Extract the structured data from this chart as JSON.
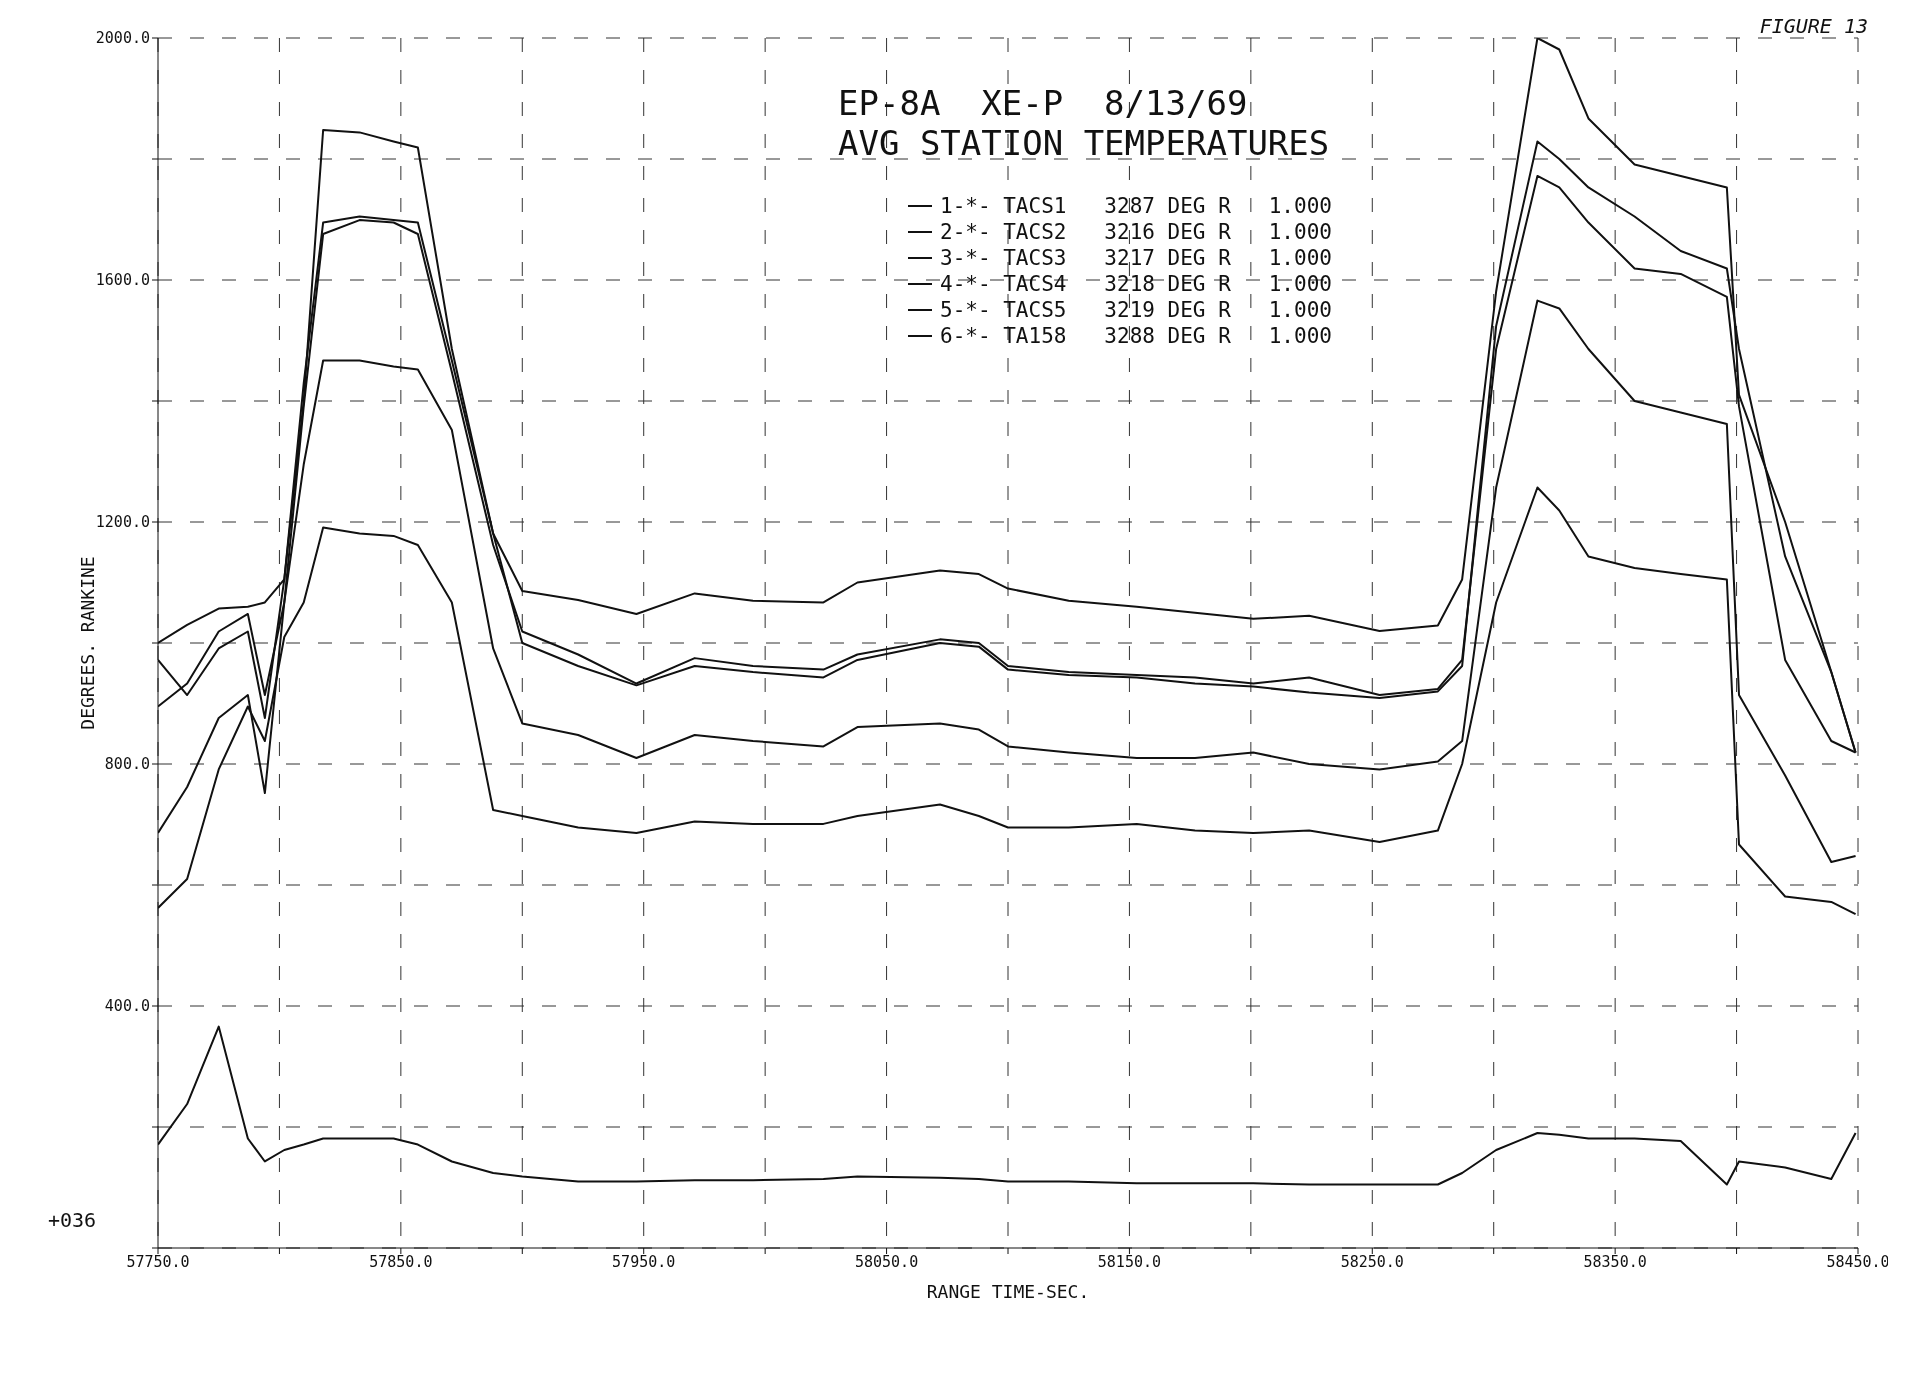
{
  "chart_data": {
    "type": "line",
    "title": "EP-8A  XE-P  8/13/69",
    "subtitle": "AVG STATION TEMPERATURES",
    "xlabel": "RANGE TIME-SEC.",
    "ylabel": "DEGREES. RANKINE",
    "annotations": [
      "+036",
      "FIGURE 13"
    ],
    "x": [
      57750,
      57762,
      57775,
      57787,
      57794,
      57802,
      57810,
      57818,
      57833,
      57847,
      57857,
      57871,
      57888,
      57900,
      57923,
      57947,
      57971,
      57995,
      58024,
      58038,
      58072,
      58088,
      58100,
      58125,
      58153,
      58177,
      58201,
      58224,
      58253,
      58277,
      58287,
      58301,
      58318,
      58327,
      58339,
      58358,
      58377,
      58396,
      58401,
      58420,
      58439,
      58449
    ],
    "series": [
      {
        "name": "1-*- TACS1   3287 DEG R   1.000",
        "color": "#111111",
        "values": [
          171,
          238,
          366,
          181,
          143,
          162,
          171,
          181,
          181,
          181,
          171,
          143,
          124,
          118,
          110,
          110,
          112,
          112,
          114,
          118,
          116,
          114,
          110,
          110,
          107,
          107,
          107,
          105,
          105,
          105,
          124,
          162,
          190,
          187,
          181,
          181,
          177,
          105,
          143,
          133,
          114,
          190
        ]
      },
      {
        "name": "2-*- TACS2   3216 DEG R   1.000",
        "color": "#111111",
        "values": [
          562,
          610,
          791,
          895,
          838,
          1010,
          1067,
          1191,
          1181,
          1177,
          1162,
          1067,
          724,
          714,
          695,
          686,
          705,
          701,
          701,
          714,
          733,
          714,
          695,
          695,
          701,
          690,
          686,
          690,
          671,
          690,
          800,
          1067,
          1257,
          1219,
          1143,
          1124,
          1114,
          1105,
          667,
          581,
          572,
          552
        ]
      },
      {
        "name": "3-*- TACS3   3217 DEG R   1.000",
        "color": "#111111",
        "values": [
          686,
          762,
          876,
          914,
          752,
          1067,
          1295,
          1467,
          1467,
          1457,
          1452,
          1352,
          991,
          867,
          848,
          810,
          848,
          838,
          829,
          861,
          867,
          857,
          829,
          819,
          810,
          810,
          819,
          800,
          791,
          804,
          838,
          1257,
          1566,
          1553,
          1486,
          1400,
          1381,
          1362,
          914,
          781,
          638,
          648
        ]
      },
      {
        "name": "4-*- TACS4   3218 DEG R   1.000",
        "color": "#111111",
        "values": [
          895,
          933,
          1019,
          1048,
          914,
          1067,
          1391,
          1676,
          1699,
          1695,
          1676,
          1448,
          1162,
          1019,
          981,
          933,
          975,
          962,
          956,
          981,
          1006,
          1000,
          962,
          952,
          947,
          943,
          933,
          943,
          914,
          924,
          972,
          1486,
          1772,
          1753,
          1695,
          1619,
          1610,
          1572,
          1391,
          972,
          838,
          819
        ]
      },
      {
        "name": "5-*- TACS5   3219 DEG R   1.000",
        "color": "#111111",
        "values": [
          1000,
          1030,
          1057,
          1060,
          1067,
          1105,
          1400,
          1848,
          1844,
          1829,
          1819,
          1486,
          1181,
          1086,
          1071,
          1048,
          1082,
          1070,
          1067,
          1100,
          1120,
          1114,
          1090,
          1070,
          1060,
          1050,
          1040,
          1045,
          1020,
          1029,
          1105,
          1581,
          2000,
          1981,
          1867,
          1791,
          1772,
          1753,
          1410,
          1200,
          952,
          819
        ]
      },
      {
        "name": "6-*- TA158   3288 DEG R   1.000",
        "color": "#111111",
        "values": [
          972,
          914,
          991,
          1019,
          876,
          1105,
          1429,
          1695,
          1705,
          1699,
          1695,
          1467,
          1181,
          1000,
          962,
          930,
          962,
          952,
          943,
          972,
          1000,
          994,
          956,
          947,
          943,
          933,
          928,
          918,
          909,
          920,
          962,
          1524,
          1829,
          1800,
          1753,
          1705,
          1648,
          1619,
          1486,
          1143,
          952,
          819
        ]
      }
    ],
    "xlim": [
      57750,
      58450
    ],
    "xticks": [
      {
        "value": 57750,
        "label": "57750.0"
      },
      {
        "value": 57800,
        "label": null
      },
      {
        "value": 57850,
        "label": "57850.0"
      },
      {
        "value": 57900,
        "label": null
      },
      {
        "value": 57950,
        "label": "57950.0"
      },
      {
        "value": 58000,
        "label": null
      },
      {
        "value": 58050,
        "label": "58050.0"
      },
      {
        "value": 58100,
        "label": null
      },
      {
        "value": 58150,
        "label": "58150.0"
      },
      {
        "value": 58200,
        "label": null
      },
      {
        "value": 58250,
        "label": "58250.0"
      },
      {
        "value": 58300,
        "label": null
      },
      {
        "value": 58350,
        "label": "58350.0"
      },
      {
        "value": 58400,
        "label": null
      },
      {
        "value": 58450,
        "label": "58450.0"
      }
    ],
    "ylim": [
      0,
      2000
    ],
    "yticks": [
      {
        "value": 0,
        "label": null
      },
      {
        "value": 200,
        "label": null
      },
      {
        "value": 400,
        "label": "400.0"
      },
      {
        "value": 600,
        "label": null
      },
      {
        "value": 800,
        "label": "800.0"
      },
      {
        "value": 1000,
        "label": null
      },
      {
        "value": 1200,
        "label": "1200.0"
      },
      {
        "value": 1400,
        "label": null
      },
      {
        "value": 1600,
        "label": "1600.0"
      },
      {
        "value": 1800,
        "label": null
      },
      {
        "value": 2000,
        "label": "2000.0"
      }
    ],
    "grid": true,
    "legend": "top right",
    "line_style": "solid"
  }
}
